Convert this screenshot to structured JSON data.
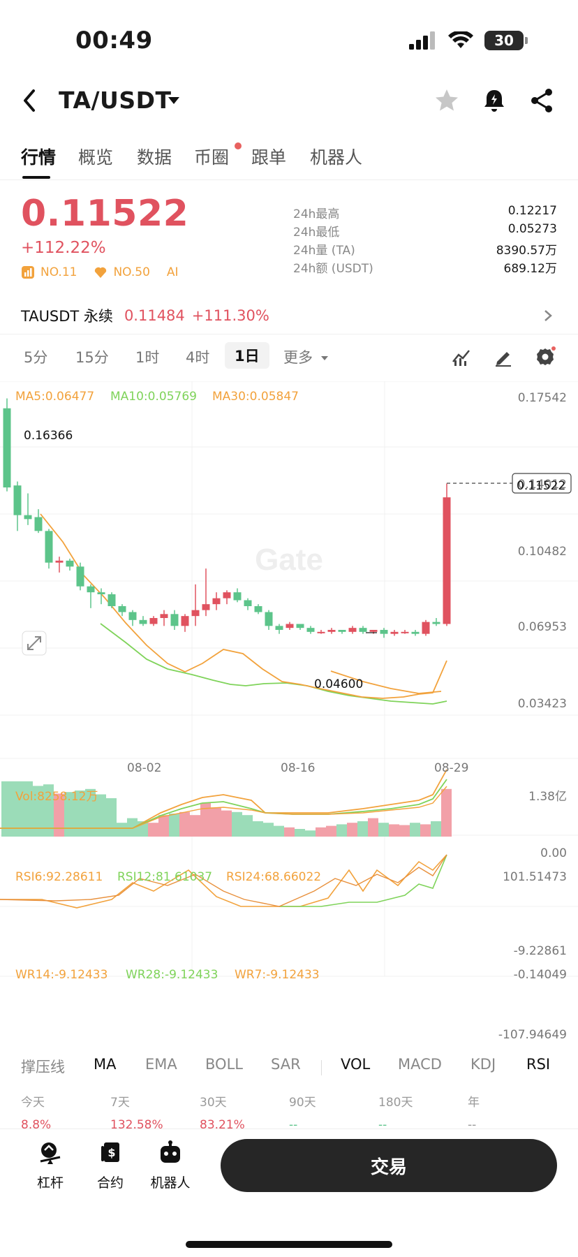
{
  "status": {
    "time": "00:49",
    "battery": "30"
  },
  "header": {
    "pair": "TA/USDT"
  },
  "tabs": [
    {
      "label": "行情",
      "active": true
    },
    {
      "label": "概览"
    },
    {
      "label": "数据"
    },
    {
      "label": "币圈",
      "dot": true
    },
    {
      "label": "跟单"
    },
    {
      "label": "机器人"
    }
  ],
  "ticker": {
    "price": "0.11522",
    "change": "+112.22%",
    "rank1": "NO.11",
    "rank2": "NO.50",
    "ai": "AI",
    "stats": [
      {
        "label": "24h最高",
        "value": "0.12217"
      },
      {
        "label": "24h最低",
        "value": "0.05273"
      },
      {
        "label": "24h量 (TA)",
        "value": "8390.57万"
      },
      {
        "label": "24h额 (USDT)",
        "value": "689.12万"
      }
    ]
  },
  "perp": {
    "name": "TAUSDT 永续",
    "price": "0.11484",
    "change": "+111.30%"
  },
  "intervals": [
    "5分",
    "15分",
    "1时",
    "4时",
    "1日",
    "更多"
  ],
  "active_interval": "1日",
  "watermark": "Gate",
  "chart_legend": {
    "ma5": "MA5:0.06477",
    "ma10": "MA10:0.05769",
    "ma30": "MA30:0.05847",
    "vol": "Vol:8258.12万",
    "rsi6": "RSI6:92.28611",
    "rsi12": "RSI12:81.61037",
    "rsi24": "RSI24:68.66022",
    "wr14": "WR14:-9.12433",
    "wr28": "WR28:-9.12433",
    "wr7": "WR7:-9.12433"
  },
  "colors": {
    "up": "#e0525f",
    "down": "#5cc48a",
    "ma5": "#f2a23c",
    "ma10": "#7fd35a",
    "ma30": "#f2a23c"
  },
  "chart_data": {
    "type": "candlestick",
    "price_axis": [
      "0.17542",
      "0.14012",
      "0.10482",
      "0.06953",
      "0.03423"
    ],
    "ylim": [
      0.03423,
      0.17542
    ],
    "x_ticks": [
      "08-02",
      "08-16",
      "08-29"
    ],
    "high_marker": "0.16366",
    "low_marker": "0.04600",
    "current_price": "0.11522",
    "candles": [
      [
        0.16,
        0.165,
        0.118,
        0.12
      ],
      [
        0.121,
        0.123,
        0.098,
        0.106
      ],
      [
        0.106,
        0.117,
        0.101,
        0.104
      ],
      [
        0.105,
        0.109,
        0.097,
        0.098
      ],
      [
        0.098,
        0.099,
        0.079,
        0.082
      ],
      [
        0.082,
        0.085,
        0.077,
        0.083
      ],
      [
        0.083,
        0.084,
        0.078,
        0.08
      ],
      [
        0.08,
        0.082,
        0.068,
        0.07
      ],
      [
        0.07,
        0.071,
        0.059,
        0.067
      ],
      [
        0.067,
        0.069,
        0.061,
        0.066
      ],
      [
        0.066,
        0.067,
        0.059,
        0.06
      ],
      [
        0.06,
        0.061,
        0.055,
        0.057
      ],
      [
        0.057,
        0.058,
        0.05,
        0.053
      ],
      [
        0.053,
        0.055,
        0.05,
        0.051
      ],
      [
        0.051,
        0.055,
        0.05,
        0.054
      ],
      [
        0.054,
        0.058,
        0.05,
        0.056
      ],
      [
        0.056,
        0.058,
        0.048,
        0.05
      ],
      [
        0.05,
        0.056,
        0.047,
        0.055
      ],
      [
        0.055,
        0.071,
        0.05,
        0.058
      ],
      [
        0.058,
        0.079,
        0.055,
        0.061
      ],
      [
        0.061,
        0.067,
        0.058,
        0.064
      ],
      [
        0.064,
        0.068,
        0.061,
        0.067
      ],
      [
        0.067,
        0.069,
        0.062,
        0.063
      ],
      [
        0.063,
        0.064,
        0.058,
        0.06
      ],
      [
        0.06,
        0.061,
        0.056,
        0.057
      ],
      [
        0.057,
        0.058,
        0.048,
        0.05
      ],
      [
        0.05,
        0.051,
        0.046,
        0.048
      ],
      [
        0.049,
        0.052,
        0.048,
        0.051
      ],
      [
        0.051,
        0.051,
        0.048,
        0.049
      ],
      [
        0.049,
        0.05,
        0.046,
        0.047
      ],
      [
        0.047,
        0.048,
        0.046,
        0.047
      ],
      [
        0.047,
        0.049,
        0.046,
        0.048
      ],
      [
        0.048,
        0.048,
        0.046,
        0.047
      ],
      [
        0.047,
        0.05,
        0.046,
        0.049
      ],
      [
        0.049,
        0.05,
        0.046,
        0.047
      ],
      [
        0.047,
        0.048,
        0.046,
        0.048
      ],
      [
        0.048,
        0.049,
        0.044,
        0.046
      ],
      [
        0.046,
        0.048,
        0.045,
        0.047
      ],
      [
        0.047,
        0.048,
        0.046,
        0.047
      ],
      [
        0.047,
        0.048,
        0.045,
        0.046
      ],
      [
        0.046,
        0.053,
        0.045,
        0.052
      ],
      [
        0.052,
        0.054,
        0.05,
        0.051
      ],
      [
        0.051,
        0.122,
        0.05,
        0.115
      ]
    ],
    "volume_axis": [
      "1.38亿",
      "0.00"
    ],
    "rsi_axis": [
      "101.51473",
      "-9.22861"
    ],
    "wr_axis": [
      "-0.14049",
      "-107.94649"
    ]
  },
  "indicator_tabs": [
    "撑压线",
    "MA",
    "EMA",
    "BOLL",
    "SAR",
    "VOL",
    "MACD",
    "KDJ",
    "RSI"
  ],
  "performance": [
    {
      "label": "今天",
      "value": "8.8%"
    },
    {
      "label": "7天",
      "value": "132.58%"
    },
    {
      "label": "30天",
      "value": "83.21%"
    },
    {
      "label": "90天",
      "value": "--"
    },
    {
      "label": "180天",
      "value": "--"
    },
    {
      "label": "年",
      "value": "--"
    }
  ],
  "bottom": {
    "leverage": "杠杆",
    "futures": "合约",
    "bot": "机器人",
    "trade": "交易"
  }
}
